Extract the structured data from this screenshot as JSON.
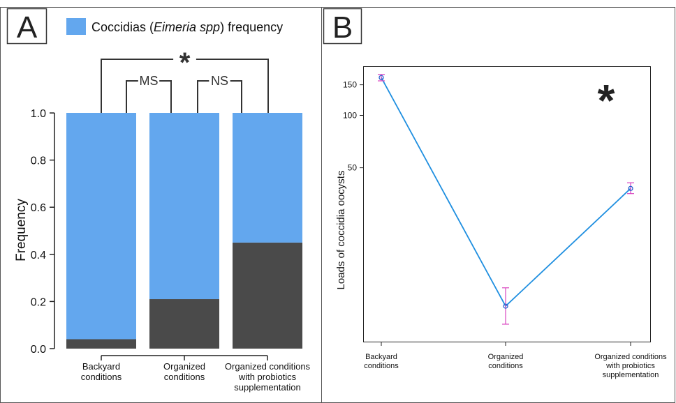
{
  "panels": {
    "a": {
      "letter": "A"
    },
    "b": {
      "letter": "B"
    }
  },
  "chart_data": [
    {
      "panel": "A",
      "type": "bar",
      "stacked": true,
      "legend": {
        "text_before": "Coccidias (",
        "text_italic": "Eimeria spp",
        "text_after": ") frequency",
        "placement": "top",
        "color": "#63a7ee"
      },
      "ylabel": "Frequency",
      "ylim": [
        0,
        1
      ],
      "yticks": [
        "0.0",
        "0.2",
        "0.4",
        "0.6",
        "0.8",
        "1.0"
      ],
      "categories": [
        [
          "Backyard",
          "conditions"
        ],
        [
          "Organized",
          "conditions"
        ],
        [
          "Organized conditions",
          "with probiotics",
          "supplementation"
        ]
      ],
      "series": [
        {
          "values": [
            0.04,
            0.21,
            0.45
          ],
          "color": "#4a4a4a"
        },
        {
          "values": [
            0.96,
            0.79,
            0.55
          ],
          "color": "#63a7ee"
        }
      ],
      "comparisons": [
        {
          "between": [
            0,
            1
          ],
          "label": "MS"
        },
        {
          "between": [
            1,
            2
          ],
          "label": "NS"
        },
        {
          "between": [
            0,
            2
          ],
          "label": "*"
        }
      ]
    },
    {
      "panel": "B",
      "type": "line",
      "ylabel": "Loads of coccidia oocysts",
      "yscale": "log",
      "yticks": [
        50,
        100,
        150
      ],
      "ylim": [
        5,
        190
      ],
      "categories": [
        [
          "Backyard",
          "conditions"
        ],
        [
          "Organized",
          "conditions"
        ],
        [
          "Organized conditions",
          "with probiotics",
          "supplementation"
        ]
      ],
      "values": [
        165,
        8,
        38
      ],
      "errors": [
        [
          158,
          172
        ],
        [
          6.3,
          10.2
        ],
        [
          35.5,
          41
        ]
      ],
      "line_color": "#1f8fe0",
      "error_color": "#d946c0",
      "point_color": "#2b5fd0",
      "annotation": "*",
      "grid": false
    }
  ]
}
